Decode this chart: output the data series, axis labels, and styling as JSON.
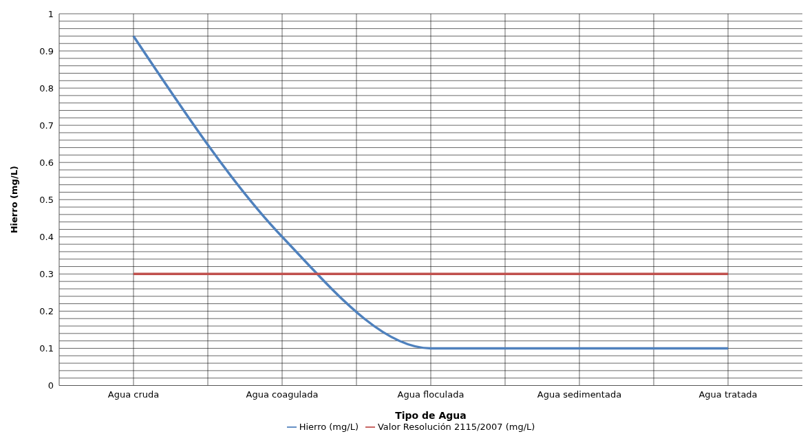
{
  "chart_data": {
    "type": "line",
    "xlabel": "Tipo de Agua",
    "ylabel": "Hierro (mg/L)",
    "categories": [
      "Agua cruda",
      "Agua coagulada",
      "Agua floculada",
      "Agua sedimentada",
      "Agua tratada"
    ],
    "series": [
      {
        "name": "Hierro (mg/L)",
        "color": "#4f81bd",
        "values": [
          0.94,
          0.4,
          0.1,
          0.1,
          0.1
        ]
      },
      {
        "name": "Valor Resolución 2115/2007 (mg/L)",
        "color": "#c0504d",
        "values": [
          0.3,
          0.3,
          0.3,
          0.3,
          0.3
        ]
      }
    ],
    "ylim": [
      0,
      1
    ],
    "yticks": [
      0,
      0.1,
      0.2,
      0.3,
      0.4,
      0.5,
      0.6,
      0.7,
      0.8,
      0.9,
      1
    ],
    "grid": true,
    "legend": "bottom",
    "marker": "none",
    "line_style": "solid"
  }
}
